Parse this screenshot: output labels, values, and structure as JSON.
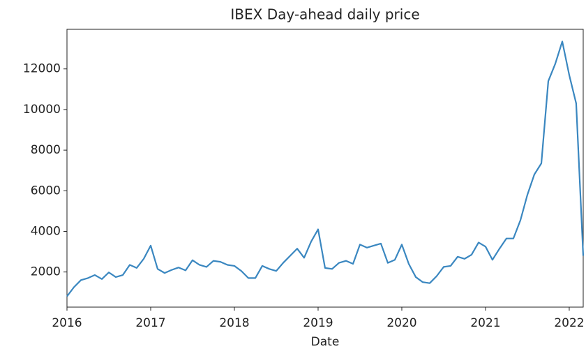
{
  "chart_data": {
    "type": "line",
    "title": "IBEX Day-ahead daily price",
    "x_label": "Date",
    "x": [
      2016,
      2016.083,
      2016.167,
      2016.25,
      2016.333,
      2016.417,
      2016.5,
      2016.583,
      2016.667,
      2016.75,
      2016.833,
      2016.917,
      2017,
      2017.083,
      2017.167,
      2017.25,
      2017.333,
      2017.417,
      2017.5,
      2017.583,
      2017.667,
      2017.75,
      2017.833,
      2017.917,
      2018,
      2018.083,
      2018.167,
      2018.25,
      2018.333,
      2018.417,
      2018.5,
      2018.583,
      2018.667,
      2018.75,
      2018.833,
      2018.917,
      2019,
      2019.083,
      2019.167,
      2019.25,
      2019.333,
      2019.417,
      2019.5,
      2019.583,
      2019.667,
      2019.75,
      2019.833,
      2019.917,
      2020,
      2020.083,
      2020.167,
      2020.25,
      2020.333,
      2020.417,
      2020.5,
      2020.583,
      2020.667,
      2020.75,
      2020.833,
      2020.917,
      2021,
      2021.083,
      2021.167,
      2021.25,
      2021.333,
      2021.417,
      2021.5,
      2021.583,
      2021.667,
      2021.75,
      2021.833,
      2021.917,
      2022,
      2022.083,
      2022.167
    ],
    "series": [
      {
        "name": "IBEX",
        "color": "#3a87c0",
        "values": [
          800,
          1250,
          1600,
          1700,
          1850,
          1650,
          1980,
          1750,
          1850,
          2350,
          2200,
          2650,
          3300,
          2150,
          1950,
          2100,
          2220,
          2080,
          2580,
          2350,
          2250,
          2550,
          2500,
          2350,
          2300,
          2050,
          1700,
          1700,
          2300,
          2150,
          2050,
          2450,
          2800,
          3150,
          2700,
          3500,
          4100,
          2200,
          2150,
          2450,
          2550,
          2400,
          3350,
          3200,
          3300,
          3400,
          2450,
          2600,
          3350,
          2400,
          1750,
          1500,
          1450,
          1800,
          2250,
          2300,
          2750,
          2650,
          2850,
          3450,
          3250,
          2600,
          3150,
          3650,
          3650,
          4550,
          5800,
          6800,
          7350,
          11400,
          12250,
          13350,
          11700,
          10300,
          2800
        ]
      }
    ],
    "xlim": [
      2016,
      2022.167
    ],
    "xticks": [
      2016,
      2017,
      2018,
      2019,
      2020,
      2021,
      2022
    ],
    "ylim": [
      270,
      13950
    ],
    "yticks": [
      2000,
      4000,
      6000,
      8000,
      10000,
      12000
    ]
  }
}
